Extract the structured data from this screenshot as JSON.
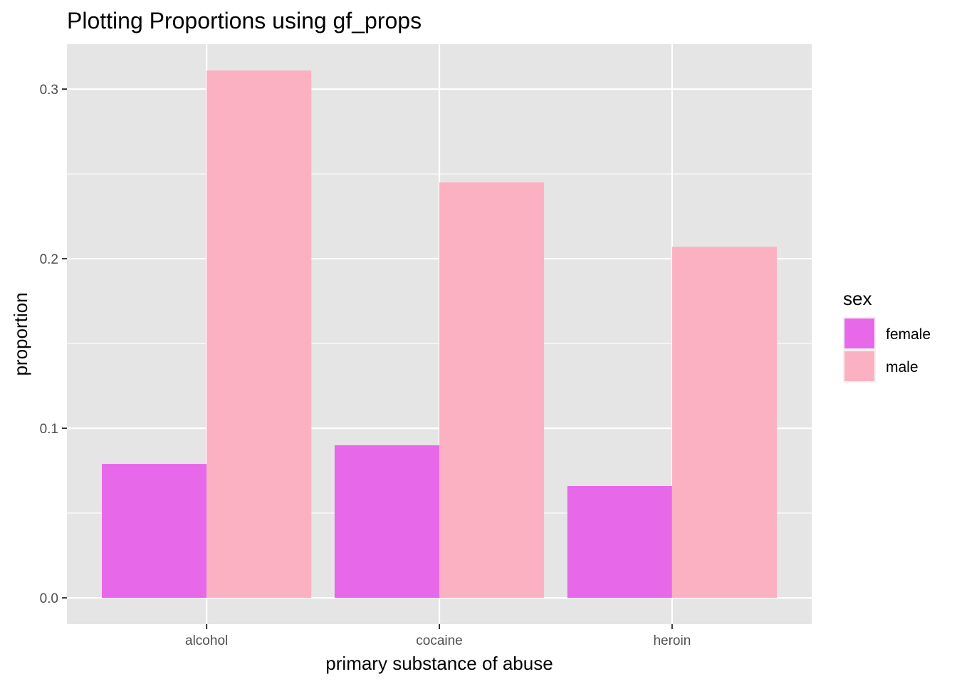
{
  "chart_data": {
    "type": "bar",
    "title": "Plotting Proportions using gf_props",
    "xlabel": "primary substance of abuse",
    "ylabel": "proportion",
    "categories": [
      "alcohol",
      "cocaine",
      "heroin"
    ],
    "series": [
      {
        "name": "female",
        "color": "#E768E9",
        "values": [
          0.079,
          0.09,
          0.066
        ]
      },
      {
        "name": "male",
        "color": "#FCB1C3",
        "values": [
          0.311,
          0.245,
          0.207
        ]
      }
    ],
    "ylim": [
      -0.0155,
      0.3265
    ],
    "yticks": [
      0.0,
      0.1,
      0.2,
      0.3
    ],
    "ytick_labels": [
      "0.0",
      "0.1",
      "0.2",
      "0.3"
    ],
    "legend": {
      "title": "sex",
      "position": "right"
    },
    "grid": true,
    "panel_color": "#E5E5E5"
  }
}
